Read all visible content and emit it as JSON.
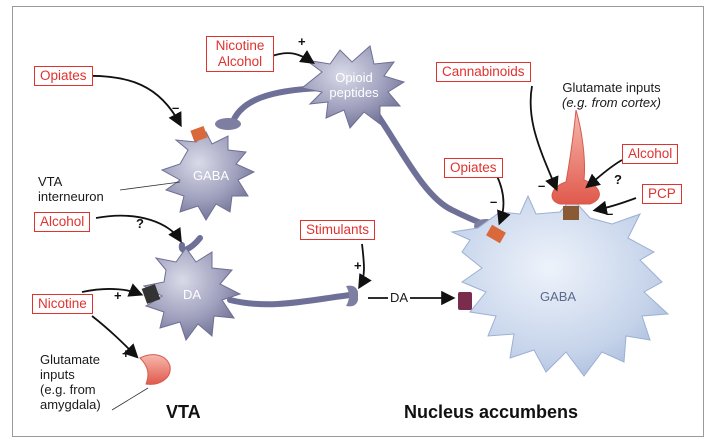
{
  "labels": {
    "nicotine_alcohol_top": [
      "Nicotine",
      "Alcohol"
    ],
    "opiates_vta": "Opiates",
    "alcohol_vta": "Alcohol",
    "nicotine_vta": "Nicotine",
    "stimulants": "Stimulants",
    "cannabinoids": "Cannabinoids",
    "opiates_nac": "Opiates",
    "alcohol_nac": "Alcohol",
    "pcp": "PCP"
  },
  "cells": {
    "opioid": [
      "Opioid",
      "peptides"
    ],
    "gaba_vta": "GABA",
    "da": "DA",
    "gaba_nac": "GABA"
  },
  "text": {
    "vta_interneuron": [
      "VTA",
      "interneuron"
    ],
    "glutamate_cortex": [
      "Glutamate inputs",
      "(e.g. from cortex)"
    ],
    "glutamate_amygdala": [
      "Glutamate",
      "inputs",
      "(e.g. from",
      "amygdala)"
    ],
    "da_release": "DA",
    "region_vta": "VTA",
    "region_nac": "Nucleus accumbens"
  },
  "signs": {
    "plus": "+",
    "minus": "–",
    "question": "?"
  },
  "colors": {
    "label_border": "#e0322f",
    "neuron_gray": "#8e8fb0",
    "nac_blue": "#c9d6ea",
    "receptor_orange": "#d9683a",
    "glutamate_red": "#e8736a"
  }
}
